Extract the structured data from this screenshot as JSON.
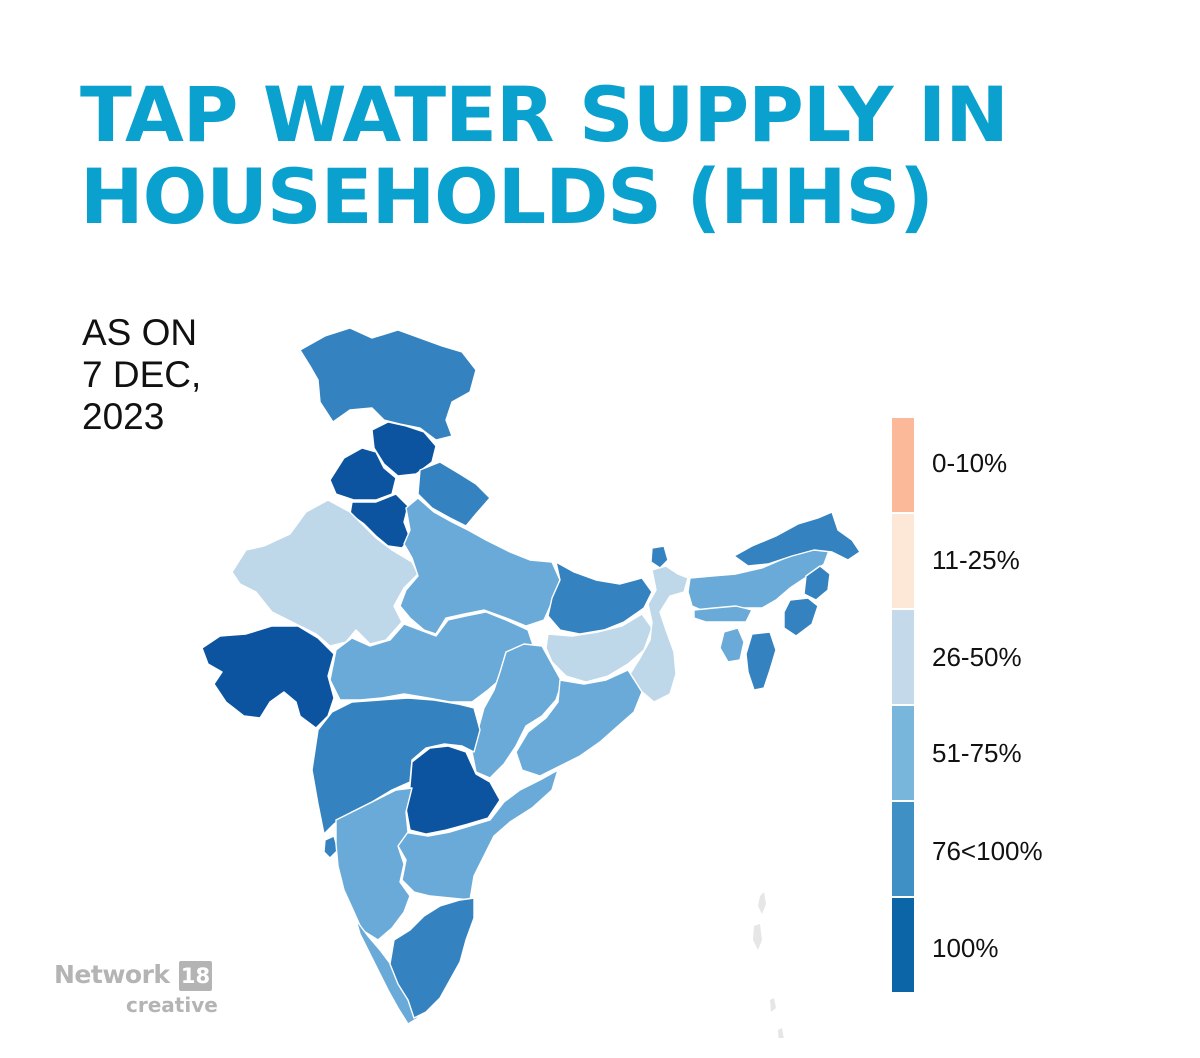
{
  "title": {
    "line1": "TAP WATER SUPPLY IN",
    "line2": "HOUSEHOLDS (HHS)"
  },
  "date_label": {
    "line1": "AS ON",
    "line2": "7 DEC,",
    "line3": "2023"
  },
  "legend": [
    {
      "label": "0-10%",
      "color": "#fcb99a"
    },
    {
      "label": "11-25%",
      "color": "#fde8d8"
    },
    {
      "label": "26-50%",
      "color": "#c4d9ea"
    },
    {
      "label": "51-75%",
      "color": "#79b6db"
    },
    {
      "label": "76<100%",
      "color": "#3e90c5"
    },
    {
      "label": "100%",
      "color": "#0b65a6"
    }
  ],
  "map_colors": {
    "c100": "#0c54a0",
    "c76": "#3482bf",
    "c51": "#6aaad8",
    "c26": "#bed8ea",
    "islands": "#e6e6e6"
  },
  "brand": {
    "name": "Network",
    "number": "18",
    "sub": "creative"
  }
}
